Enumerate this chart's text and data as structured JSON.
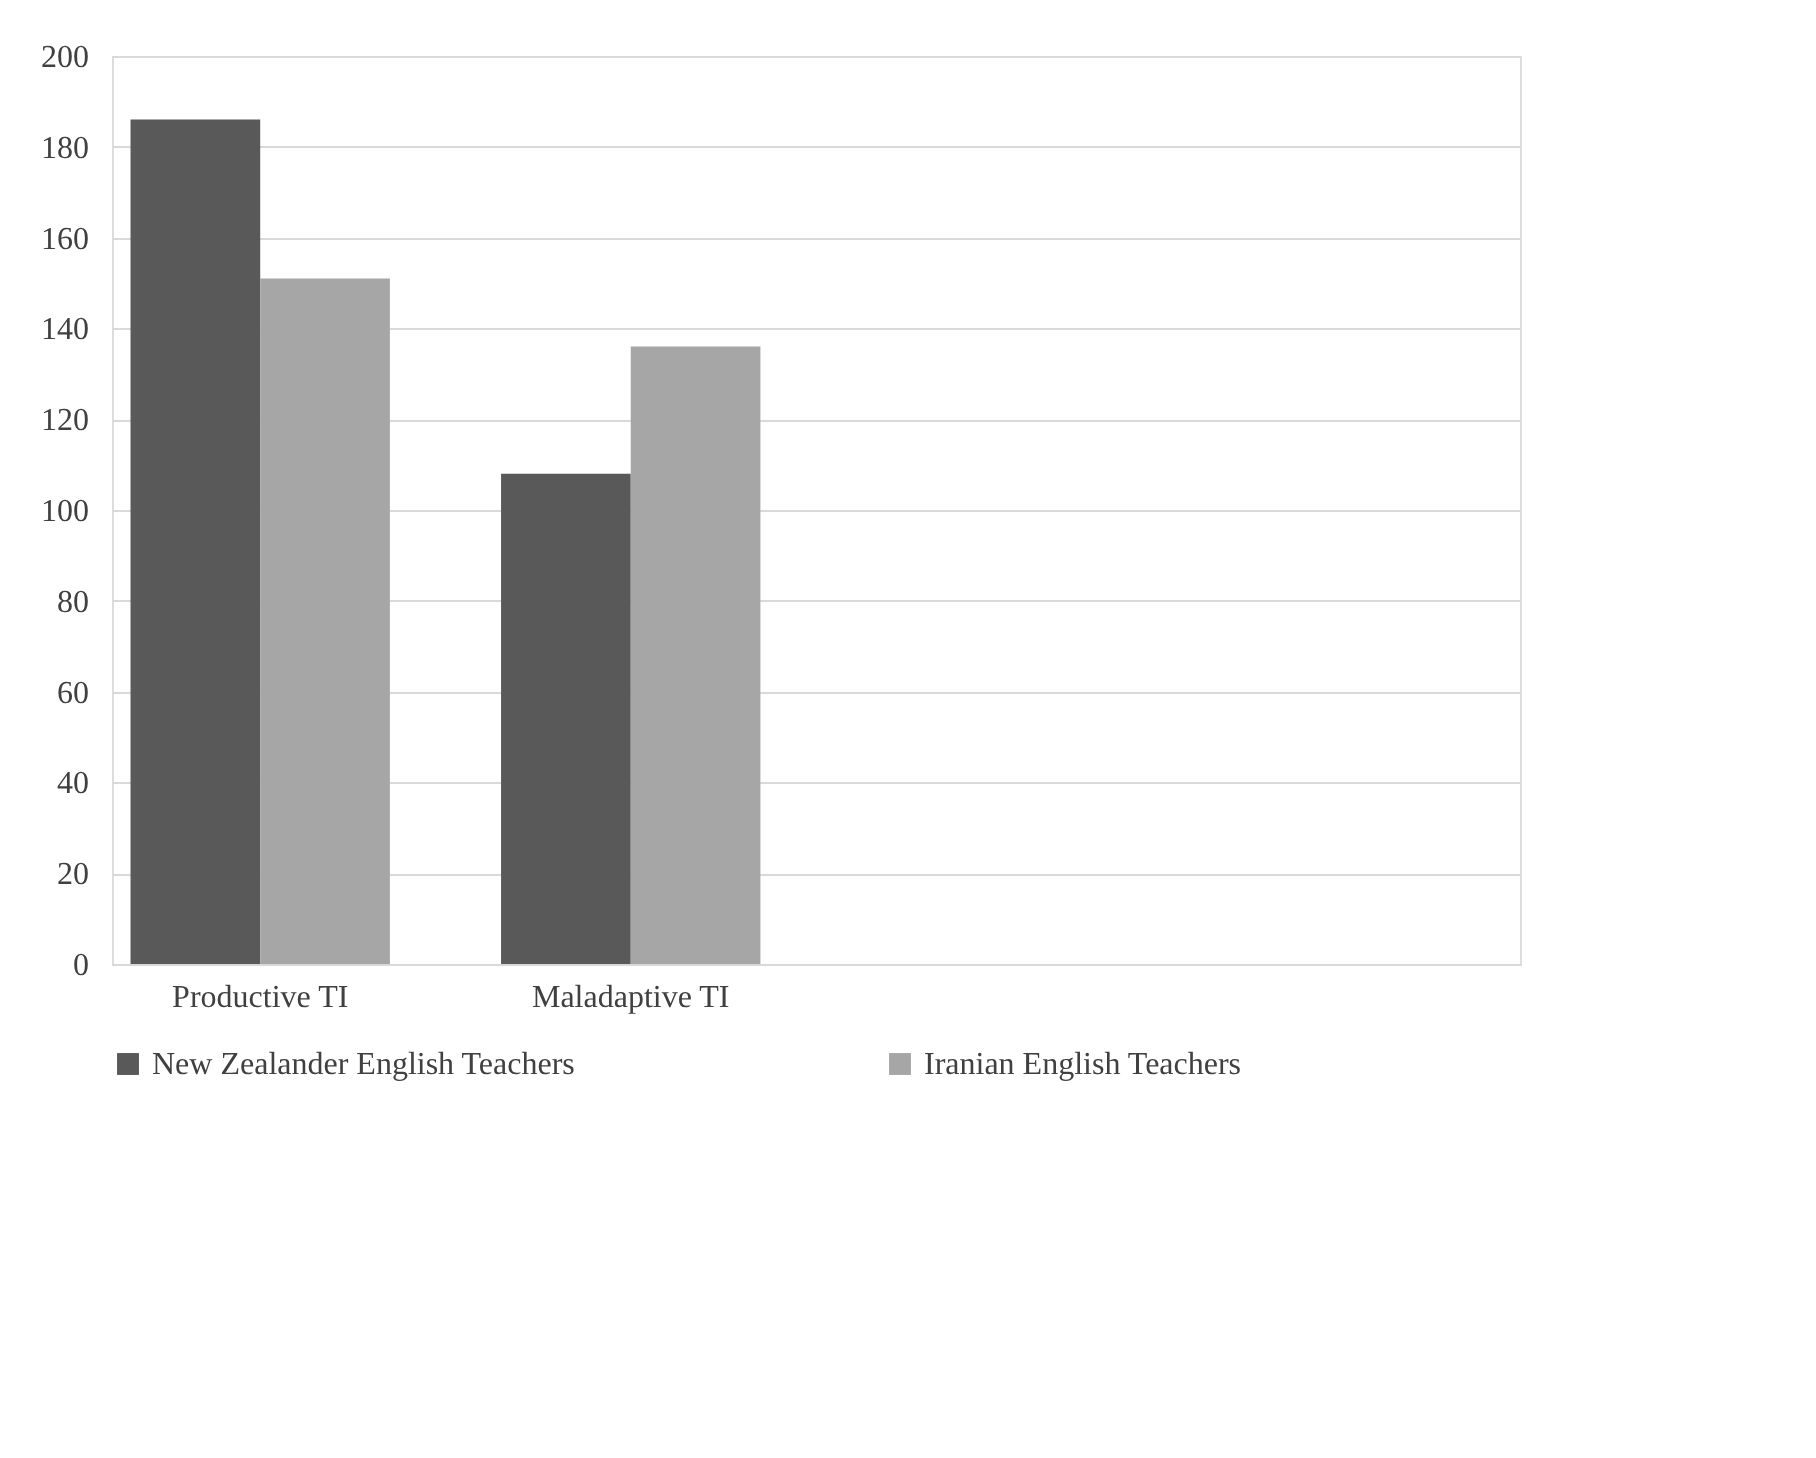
{
  "chart_data": {
    "type": "bar",
    "categories": [
      "Productive TI",
      "Maladaptive TI",
      null,
      null
    ],
    "series": [
      {
        "name": "New Zealander  English Teachers",
        "color": "#595959",
        "values": [
          186,
          108,
          null,
          null
        ]
      },
      {
        "name": "Iranian English Teachers",
        "color": "#a6a6a6",
        "values": [
          151,
          136,
          null,
          null
        ]
      }
    ],
    "ylim": [
      0,
      200
    ],
    "yticks": [
      0,
      20,
      40,
      60,
      80,
      100,
      120,
      140,
      160,
      180,
      200
    ],
    "grid": "y",
    "legend": "bottom"
  }
}
